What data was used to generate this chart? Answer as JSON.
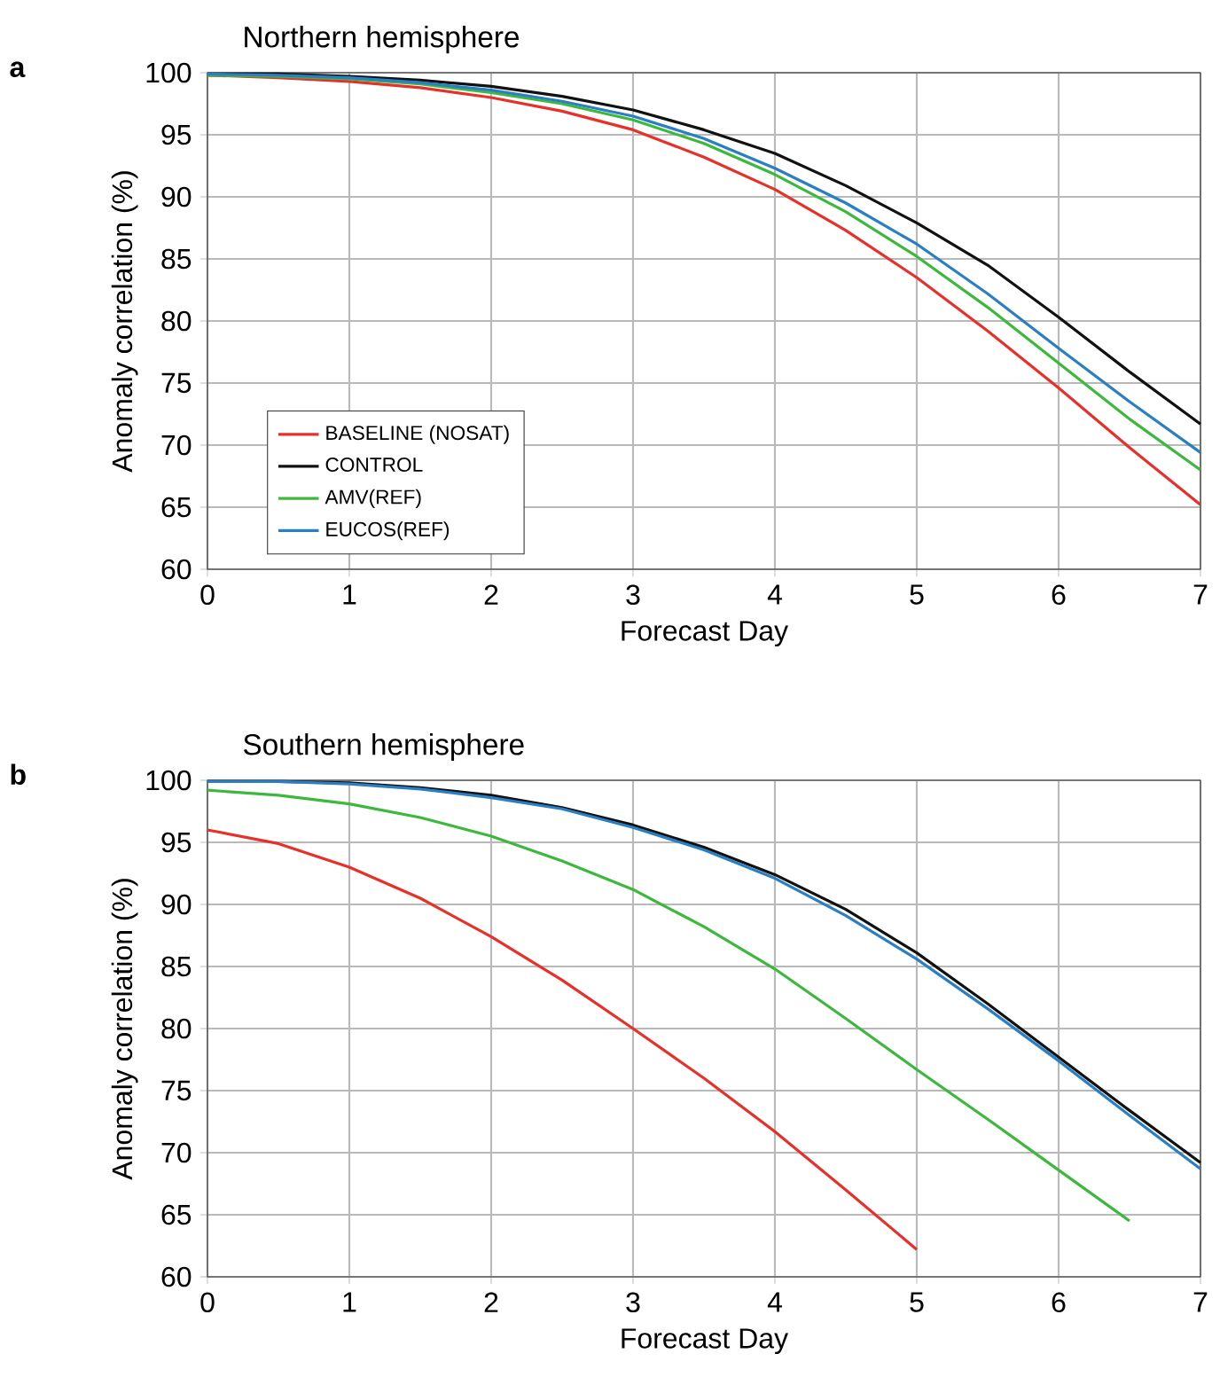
{
  "chart_data": [
    {
      "type": "line",
      "title": "Northern hemisphere",
      "xlabel": "Forecast Day",
      "ylabel": "Anomaly correlation (%)",
      "annotations": [
        "a"
      ],
      "x": [
        0,
        0.5,
        1,
        1.5,
        2,
        2.5,
        3,
        3.5,
        4,
        4.5,
        5,
        5.5,
        6,
        6.5,
        7
      ],
      "series": [
        {
          "name": "BASELINE (NOSAT)",
          "color": "#e8302a",
          "values": [
            99.8,
            99.6,
            99.3,
            98.8,
            98.0,
            96.9,
            95.4,
            93.2,
            90.6,
            87.3,
            83.5,
            79.2,
            74.6,
            69.8,
            65.2
          ]
        },
        {
          "name": "CONTROL",
          "color": "#111111",
          "values": [
            99.9,
            99.9,
            99.7,
            99.4,
            98.9,
            98.1,
            97.0,
            95.4,
            93.5,
            90.9,
            87.9,
            84.5,
            80.3,
            75.9,
            71.7
          ]
        },
        {
          "name": "AMV(REF)",
          "color": "#3cb93c",
          "values": [
            99.8,
            99.7,
            99.5,
            99.1,
            98.4,
            97.5,
            96.2,
            94.3,
            91.8,
            88.8,
            85.2,
            81.1,
            76.6,
            72.1,
            68.0
          ]
        },
        {
          "name": "EUCOS(REF)",
          "color": "#2a7fc4",
          "values": [
            99.9,
            99.8,
            99.6,
            99.2,
            98.6,
            97.7,
            96.5,
            94.7,
            92.3,
            89.5,
            86.2,
            82.2,
            77.8,
            73.5,
            69.4
          ]
        }
      ],
      "xlim": [
        0,
        7
      ],
      "xticks": [
        0,
        1,
        2,
        3,
        4,
        5,
        6,
        7
      ],
      "ylim": [
        60,
        100
      ],
      "yticks": [
        60,
        65,
        70,
        75,
        80,
        85,
        90,
        95,
        100
      ],
      "grid": true,
      "legend": "bottom left",
      "line_style": "solid"
    },
    {
      "type": "line",
      "title": "Southern hemisphere",
      "xlabel": "Forecast Day",
      "ylabel": "Anomaly correlation (%)",
      "annotations": [
        "b"
      ],
      "x": [
        0,
        0.5,
        1,
        1.5,
        2,
        2.5,
        3,
        3.5,
        4,
        4.5,
        5,
        5.5,
        6,
        6.5,
        7
      ],
      "series": [
        {
          "color": "#e8302a",
          "values": [
            96.0,
            94.9,
            93.0,
            90.5,
            87.4,
            83.9,
            80.0,
            76.0,
            71.7,
            67.0,
            62.2,
            null,
            null,
            null,
            null
          ]
        },
        {
          "color": "#3cb93c",
          "values": [
            99.2,
            98.8,
            98.1,
            97.0,
            95.5,
            93.5,
            91.2,
            88.2,
            84.8,
            80.8,
            76.7,
            72.7,
            68.6,
            64.5,
            null
          ]
        },
        {
          "color": "#111111",
          "values": [
            99.9,
            99.9,
            99.8,
            99.4,
            98.8,
            97.8,
            96.4,
            94.6,
            92.4,
            89.6,
            86.1,
            82.0,
            77.7,
            73.4,
            69.2
          ]
        },
        {
          "color": "#2a7fc4",
          "values": [
            99.9,
            99.9,
            99.7,
            99.3,
            98.6,
            97.7,
            96.2,
            94.4,
            92.1,
            89.1,
            85.6,
            81.6,
            77.4,
            73.0,
            68.7
          ]
        }
      ],
      "xlim": [
        0,
        7
      ],
      "xticks": [
        0,
        1,
        2,
        3,
        4,
        5,
        6,
        7
      ],
      "ylim": [
        60,
        100
      ],
      "yticks": [
        60,
        65,
        70,
        75,
        80,
        85,
        90,
        95,
        100
      ],
      "grid": true,
      "line_style": "solid"
    }
  ]
}
